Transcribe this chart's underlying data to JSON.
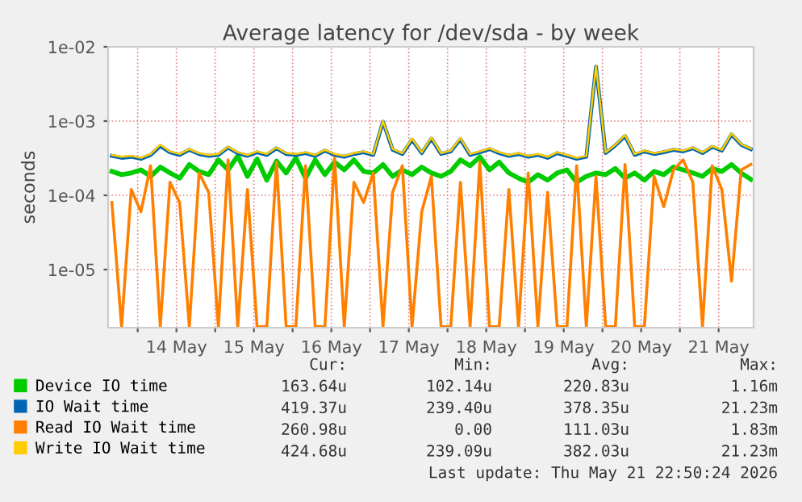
{
  "chart_data": {
    "type": "line",
    "title": "Average latency for /dev/sda - by week",
    "ylabel": "seconds",
    "x": [
      "2026-05-13T16:00",
      "2026-05-13T19:00",
      "2026-05-13T22:00",
      "2026-05-14T01:00",
      "2026-05-14T04:00",
      "2026-05-14T07:00",
      "2026-05-14T10:00",
      "2026-05-14T13:00",
      "2026-05-14T16:00",
      "2026-05-14T19:00",
      "2026-05-14T22:00",
      "2026-05-15T01:00",
      "2026-05-15T04:00",
      "2026-05-15T07:00",
      "2026-05-15T10:00",
      "2026-05-15T13:00",
      "2026-05-15T16:00",
      "2026-05-15T19:00",
      "2026-05-15T22:00",
      "2026-05-16T01:00",
      "2026-05-16T04:00",
      "2026-05-16T07:00",
      "2026-05-16T10:00",
      "2026-05-16T13:00",
      "2026-05-16T16:00",
      "2026-05-16T19:00",
      "2026-05-16T22:00",
      "2026-05-17T01:00",
      "2026-05-17T04:00",
      "2026-05-17T07:00",
      "2026-05-17T10:00",
      "2026-05-17T13:00",
      "2026-05-17T16:00",
      "2026-05-17T19:00",
      "2026-05-17T22:00",
      "2026-05-18T01:00",
      "2026-05-18T04:00",
      "2026-05-18T07:00",
      "2026-05-18T10:00",
      "2026-05-18T13:00",
      "2026-05-18T16:00",
      "2026-05-18T19:00",
      "2026-05-18T22:00",
      "2026-05-19T01:00",
      "2026-05-19T04:00",
      "2026-05-19T07:00",
      "2026-05-19T10:00",
      "2026-05-19T13:00",
      "2026-05-19T16:00",
      "2026-05-19T19:00",
      "2026-05-19T22:00",
      "2026-05-20T01:00",
      "2026-05-20T04:00",
      "2026-05-20T07:00",
      "2026-05-20T10:00",
      "2026-05-20T13:00",
      "2026-05-20T16:00",
      "2026-05-20T19:00",
      "2026-05-20T22:00",
      "2026-05-21T01:00",
      "2026-05-21T04:00",
      "2026-05-21T07:00",
      "2026-05-21T10:00",
      "2026-05-21T13:00",
      "2026-05-21T16:00",
      "2026-05-21T19:00",
      "2026-05-21T22:00"
    ],
    "series": [
      {
        "name": "Device IO time",
        "color": "#00cc00",
        "values": [
          0.00021,
          0.00019,
          0.0002,
          0.00022,
          0.00018,
          0.00024,
          0.0002,
          0.00017,
          0.00026,
          0.00021,
          0.00019,
          0.0003,
          0.00022,
          0.00034,
          0.00018,
          0.00031,
          0.00016,
          0.00029,
          0.0002,
          0.00032,
          0.00017,
          0.0003,
          0.00019,
          0.00028,
          0.00022,
          0.0003,
          0.00021,
          0.0002,
          0.00026,
          0.00018,
          0.00022,
          0.00019,
          0.00024,
          0.0002,
          0.00018,
          0.00021,
          0.0003,
          0.00025,
          0.00033,
          0.00022,
          0.00028,
          0.0002,
          0.00017,
          0.00015,
          0.00019,
          0.00016,
          0.0002,
          0.00022,
          0.00015,
          0.00018,
          0.0002,
          0.00019,
          0.00023,
          0.00017,
          0.0002,
          0.00016,
          0.00021,
          0.00019,
          0.00024,
          0.00022,
          0.0002,
          0.00018,
          0.00023,
          0.00021,
          0.00026,
          0.0002,
          0.000164
        ]
      },
      {
        "name": "IO Wait time",
        "color": "#0066b3",
        "values": [
          0.00034,
          0.00032,
          0.00033,
          0.00031,
          0.00035,
          0.00046,
          0.00038,
          0.00035,
          0.00041,
          0.00036,
          0.00034,
          0.00035,
          0.00044,
          0.00037,
          0.00034,
          0.00038,
          0.00035,
          0.00043,
          0.00036,
          0.00035,
          0.00037,
          0.00034,
          0.0004,
          0.00035,
          0.00033,
          0.00036,
          0.00038,
          0.00035,
          0.00098,
          0.00041,
          0.00036,
          0.00056,
          0.00037,
          0.00058,
          0.00036,
          0.00039,
          0.00057,
          0.00035,
          0.00038,
          0.00042,
          0.00037,
          0.00034,
          0.00036,
          0.00033,
          0.00035,
          0.00032,
          0.00037,
          0.00034,
          0.00031,
          0.00033,
          0.0054,
          0.00037,
          0.00047,
          0.00063,
          0.00035,
          0.00039,
          0.00036,
          0.00038,
          0.00041,
          0.00039,
          0.00043,
          0.00037,
          0.00045,
          0.0004,
          0.00066,
          0.00048,
          0.000419
        ]
      },
      {
        "name": "Read IO Wait time",
        "color": "#ff8000",
        "values": [
          8e-05,
          1.7e-06,
          0.00012,
          6e-05,
          0.00025,
          1.7e-06,
          0.00015,
          8e-05,
          1.7e-06,
          0.0002,
          0.00011,
          1.7e-06,
          0.0003,
          1.7e-06,
          0.00012,
          1.7e-06,
          1.7e-06,
          0.00028,
          1.7e-06,
          1.7e-06,
          0.00025,
          1.7e-06,
          1.7e-06,
          0.00032,
          1.7e-06,
          0.00015,
          8e-05,
          0.0002,
          1.7e-06,
          0.00011,
          0.00025,
          1.7e-06,
          6e-05,
          0.00018,
          1.7e-06,
          1.7e-06,
          0.00015,
          1.7e-06,
          0.00028,
          1.7e-06,
          1.7e-06,
          0.00012,
          1.7e-06,
          0.0002,
          1.7e-06,
          0.00011,
          1.7e-06,
          1.7e-06,
          0.00025,
          1.7e-06,
          0.00018,
          1.7e-06,
          1.7e-06,
          0.00026,
          1.7e-06,
          1.7e-06,
          0.00018,
          7e-05,
          0.00022,
          0.0003,
          0.00015,
          1.7e-06,
          0.00025,
          0.00012,
          7e-06,
          0.00022,
          0.000261
        ]
      },
      {
        "name": "Write IO Wait time",
        "color": "#ffcc00",
        "values": [
          0.00035,
          0.00033,
          0.00034,
          0.00032,
          0.00036,
          0.00048,
          0.00039,
          0.00036,
          0.00042,
          0.00037,
          0.00035,
          0.00036,
          0.00045,
          0.00038,
          0.00035,
          0.00039,
          0.00036,
          0.00044,
          0.00037,
          0.00036,
          0.00038,
          0.00035,
          0.00041,
          0.00036,
          0.00034,
          0.00037,
          0.00039,
          0.00036,
          0.001,
          0.00042,
          0.00037,
          0.00058,
          0.00038,
          0.0006,
          0.00037,
          0.0004,
          0.00059,
          0.00036,
          0.00039,
          0.00043,
          0.00038,
          0.00035,
          0.00037,
          0.00034,
          0.00036,
          0.00033,
          0.00038,
          0.00035,
          0.00032,
          0.00034,
          0.0055,
          0.00038,
          0.00048,
          0.00065,
          0.00036,
          0.0004,
          0.00037,
          0.00039,
          0.00042,
          0.0004,
          0.00044,
          0.00038,
          0.00046,
          0.00041,
          0.00068,
          0.00049,
          0.000425
        ]
      }
    ],
    "log": "y",
    "ylim": [
      1.65e-06,
      0.01
    ],
    "yticks": [
      {
        "value": 1e-05,
        "label": "1e-05"
      },
      {
        "value": 0.0001,
        "label": "1e-04"
      },
      {
        "value": 0.001,
        "label": "1e-03"
      },
      {
        "value": 0.01,
        "label": "1e-02"
      }
    ],
    "xlim": [
      "2026-05-13T14:50",
      "2026-05-21T22:50"
    ],
    "xticks": [
      {
        "value": "2026-05-14T00:00",
        "label": null
      },
      {
        "value": "2026-05-14T12:00",
        "label": "14 May"
      },
      {
        "value": "2026-05-15T00:00",
        "label": null
      },
      {
        "value": "2026-05-15T12:00",
        "label": "15 May"
      },
      {
        "value": "2026-05-16T00:00",
        "label": null
      },
      {
        "value": "2026-05-16T12:00",
        "label": "16 May"
      },
      {
        "value": "2026-05-17T00:00",
        "label": null
      },
      {
        "value": "2026-05-17T12:00",
        "label": "17 May"
      },
      {
        "value": "2026-05-18T00:00",
        "label": null
      },
      {
        "value": "2026-05-18T12:00",
        "label": "18 May"
      },
      {
        "value": "2026-05-19T00:00",
        "label": null
      },
      {
        "value": "2026-05-19T12:00",
        "label": "19 May"
      },
      {
        "value": "2026-05-20T00:00",
        "label": null
      },
      {
        "value": "2026-05-20T12:00",
        "label": "20 May"
      },
      {
        "value": "2026-05-21T00:00",
        "label": null
      },
      {
        "value": "2026-05-21T12:00",
        "label": "21 May"
      }
    ],
    "grid": true,
    "legend": "bottom",
    "line_style": "solid",
    "marker": "none",
    "annotations": [
      "Cur:",
      "Min:",
      "Avg:",
      "Max:",
      "163.64u",
      "102.14u",
      "220.83u",
      "1.16m",
      "419.37u",
      "239.40u",
      "378.35u",
      "21.23m",
      "260.98u",
      "0.00",
      "111.03u",
      "1.83m",
      "424.68u",
      "239.09u",
      "382.03u",
      "21.23m",
      "Last update: Thu May 21 22:50:24 2026"
    ]
  }
}
